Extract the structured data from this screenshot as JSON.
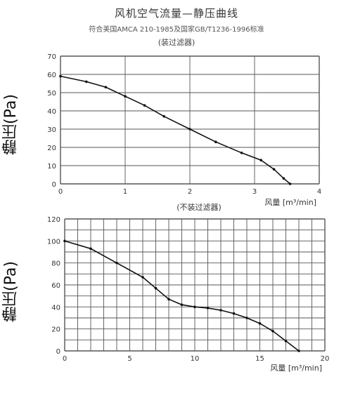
{
  "header": {
    "title": "风机空气流量—静压曲线",
    "subtitle": "符合美国AMCA 210-1985及国家GB/T1236-1996标准",
    "subtitle2": "(装过滤器)"
  },
  "chart_data": [
    {
      "type": "line",
      "subtitle": "(装过滤器)",
      "ylabel": "静压(Pa)",
      "xlabel": "风量 [m³/min]",
      "xlim": [
        0,
        4
      ],
      "ylim": [
        0,
        70
      ],
      "xticks": [
        "0",
        "1",
        "2",
        "3",
        "4"
      ],
      "yticks": [
        "0",
        "10",
        "20",
        "30",
        "40",
        "50",
        "60",
        "70"
      ],
      "grid": true,
      "series": [
        {
          "x": [
            0,
            0.4,
            0.7,
            1.0,
            1.3,
            1.6,
            2.0,
            2.4,
            2.8,
            3.1,
            3.3,
            3.45,
            3.55
          ],
          "values": [
            59,
            56,
            53,
            48,
            43,
            37,
            30,
            23,
            17,
            13,
            8,
            3,
            0
          ]
        }
      ]
    },
    {
      "type": "line",
      "subtitle": "(不装过滤器)",
      "ylabel": "静压(Pa)",
      "xlabel": "风量 [m³/min]",
      "xlim": [
        0,
        20
      ],
      "ylim": [
        0,
        120
      ],
      "xticks": [
        "0",
        "5",
        "10",
        "15",
        "20"
      ],
      "yticks": [
        "0",
        "20",
        "40",
        "60",
        "80",
        "100",
        "120"
      ],
      "grid": true,
      "series": [
        {
          "x": [
            0,
            2,
            4,
            6,
            7,
            8,
            9,
            10,
            11,
            12,
            13,
            14,
            15,
            16,
            17,
            18
          ],
          "values": [
            100,
            93,
            80,
            67,
            57,
            47,
            42,
            40,
            39,
            37,
            34,
            30,
            25,
            18,
            9,
            0
          ]
        }
      ]
    }
  ]
}
